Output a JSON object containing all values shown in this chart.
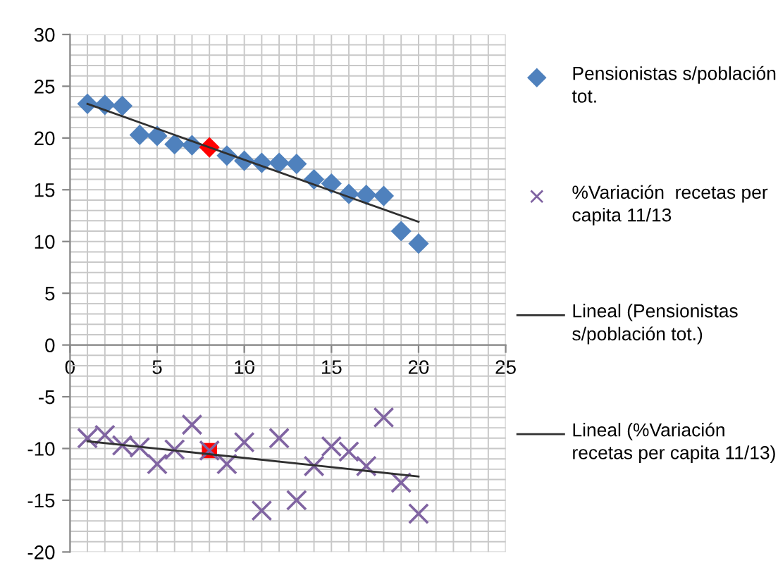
{
  "chart_data": {
    "type": "scatter",
    "x": [
      1,
      2,
      3,
      4,
      5,
      6,
      7,
      8,
      9,
      10,
      11,
      12,
      13,
      14,
      15,
      16,
      17,
      18,
      19,
      20
    ],
    "series": [
      {
        "name": "Pensionistas s/población tot.",
        "color": "#4f81bd",
        "marker": "diamond",
        "colors": [
          "#4f81bd",
          "#4f81bd",
          "#4f81bd",
          "#4f81bd",
          "#4f81bd",
          "#4f81bd",
          "#4f81bd",
          "#ff0000",
          "#4f81bd",
          "#4f81bd",
          "#4f81bd",
          "#4f81bd",
          "#4f81bd",
          "#4f81bd",
          "#4f81bd",
          "#4f81bd",
          "#4f81bd",
          "#4f81bd",
          "#4f81bd",
          "#4f81bd"
        ],
        "values": [
          23.3,
          23.2,
          23.1,
          20.3,
          20.2,
          19.4,
          19.3,
          19.1,
          18.3,
          17.8,
          17.6,
          17.6,
          17.5,
          16.0,
          15.6,
          14.6,
          14.5,
          14.4,
          11.0,
          9.8
        ]
      },
      {
        "color": "#ff0000",
        "marker": "square",
        "x": [
          8
        ],
        "values": [
          -10.2
        ]
      },
      {
        "name": "%Variación  recetas per capita 11/13",
        "color": "#8064a2",
        "marker": "cross",
        "values": [
          -9,
          -8.7,
          -9.7,
          -9.9,
          -11.5,
          -10.1,
          -7.7,
          -10.2,
          -11.5,
          -9.4,
          -16,
          -9,
          -15,
          -11.7,
          -9.8,
          -10.3,
          -11.7,
          -7,
          -13.3,
          -16.3
        ]
      },
      {
        "name": "Lineal (Pensionistas s/población tot.)",
        "type": "line",
        "color": "#303030",
        "x": [
          1,
          20
        ],
        "values": [
          23.3,
          11.9
        ]
      },
      {
        "name": "Lineal (%Variación recetas per capita 11/13)",
        "type": "line",
        "color": "#303030",
        "x": [
          1,
          20
        ],
        "values": [
          -9.3,
          -12.7
        ]
      }
    ],
    "xlim": [
      0,
      25
    ],
    "xticks": [
      0,
      5,
      10,
      15,
      20,
      25
    ],
    "ylim": [
      -20,
      30
    ],
    "yticks": [
      -20,
      -15,
      -10,
      -5,
      0,
      5,
      10,
      15,
      20,
      25,
      30
    ],
    "grid": true,
    "legend": "right"
  }
}
